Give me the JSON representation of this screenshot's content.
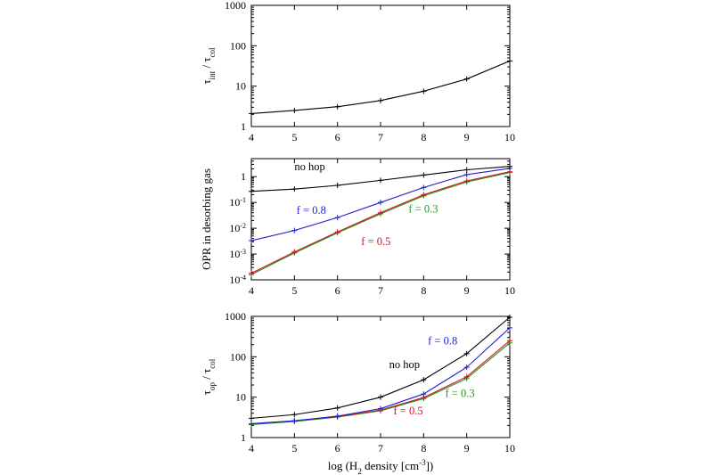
{
  "chart_data": [
    {
      "type": "line",
      "yscale": "log",
      "ylim": [
        1,
        1000
      ],
      "xlim": [
        4,
        10
      ],
      "x": [
        4,
        5,
        6,
        7,
        8,
        9,
        10
      ],
      "x_ticks": [
        "4",
        "5",
        "6",
        "7",
        "8",
        "9",
        "10"
      ],
      "y_ticks": [
        {
          "value": 1,
          "base": "1",
          "exp": ""
        },
        {
          "value": 10,
          "base": "10",
          "exp": ""
        },
        {
          "value": 100,
          "base": "100",
          "exp": ""
        },
        {
          "value": 1000,
          "base": "1000",
          "exp": ""
        }
      ],
      "ylabel": {
        "main": "τ",
        "sub1": "int",
        "sep": " / τ",
        "sub2": "col"
      },
      "series": [
        {
          "name": "",
          "color": "#000000",
          "values": [
            2.1,
            2.5,
            3.1,
            4.4,
            7.5,
            15,
            42
          ]
        }
      ],
      "annotations": []
    },
    {
      "type": "line",
      "yscale": "log",
      "ylim": [
        0.0001,
        5
      ],
      "xlim": [
        4,
        10
      ],
      "x": [
        4,
        5,
        6,
        7,
        8,
        9,
        10
      ],
      "x_ticks": [
        "4",
        "5",
        "6",
        "7",
        "8",
        "9",
        "10"
      ],
      "y_ticks": [
        {
          "value": 0.0001,
          "base": "10",
          "exp": "-4"
        },
        {
          "value": 0.001,
          "base": "10",
          "exp": "-3"
        },
        {
          "value": 0.01,
          "base": "10",
          "exp": "-2"
        },
        {
          "value": 0.1,
          "base": "10",
          "exp": "-1"
        },
        {
          "value": 1,
          "base": "1",
          "exp": ""
        }
      ],
      "ylabel": {
        "main": "OPR in desorbing gas",
        "sub1": "",
        "sep": "",
        "sub2": ""
      },
      "series": [
        {
          "name": "no hop",
          "color": "#000000",
          "values": [
            0.27,
            0.33,
            0.46,
            0.72,
            1.15,
            1.85,
            2.5
          ]
        },
        {
          "name": "f = 0.8",
          "color": "#1f1fd0",
          "values": [
            0.0033,
            0.0082,
            0.026,
            0.1,
            0.38,
            1.2,
            2.1
          ]
        },
        {
          "name": "f = 0.5",
          "color": "#d4141e",
          "values": [
            0.00018,
            0.0012,
            0.0072,
            0.04,
            0.2,
            0.68,
            1.55
          ]
        },
        {
          "name": "f = 0.3",
          "color": "#1a9a1a",
          "values": [
            0.00016,
            0.0011,
            0.0066,
            0.036,
            0.18,
            0.62,
            1.45
          ]
        }
      ],
      "annotations": [
        {
          "text": "no hop",
          "color": "#000000",
          "x": 5.0,
          "y": 1.8
        },
        {
          "text": "f = 0.8",
          "color": "#1f1fd0",
          "x": 5.05,
          "y": 0.036
        },
        {
          "text": "f = 0.5",
          "color": "#d4141e",
          "x": 6.55,
          "y": 0.0022
        },
        {
          "text": "f = 0.3",
          "color": "#1a9a1a",
          "x": 7.65,
          "y": 0.04
        }
      ]
    },
    {
      "type": "line",
      "yscale": "log",
      "ylim": [
        1,
        1000
      ],
      "xlim": [
        4,
        10
      ],
      "x": [
        4,
        5,
        6,
        7,
        8,
        9,
        10
      ],
      "x_ticks": [
        "4",
        "5",
        "6",
        "7",
        "8",
        "9",
        "10"
      ],
      "y_ticks": [
        {
          "value": 1,
          "base": "1",
          "exp": ""
        },
        {
          "value": 10,
          "base": "10",
          "exp": ""
        },
        {
          "value": 100,
          "base": "100",
          "exp": ""
        },
        {
          "value": 1000,
          "base": "1000",
          "exp": ""
        }
      ],
      "ylabel": {
        "main": "τ",
        "sub1": "op",
        "sep": " / τ",
        "sub2": "col"
      },
      "xlabel": {
        "pre": "log (H",
        "sub": "2",
        "mid": " density [cm",
        "sup": "-3",
        "post": "])"
      },
      "series": [
        {
          "name": "no hop",
          "color": "#000000",
          "values": [
            3.0,
            3.7,
            5.4,
            10,
            27,
            120,
            950
          ]
        },
        {
          "name": "f = 0.8",
          "color": "#1f1fd0",
          "values": [
            2.2,
            2.6,
            3.4,
            5.2,
            12,
            55,
            520
          ]
        },
        {
          "name": "f = 0.5",
          "color": "#d4141e",
          "values": [
            2.2,
            2.6,
            3.3,
            4.8,
            9.8,
            32,
            250
          ]
        },
        {
          "name": "f = 0.3",
          "color": "#1a9a1a",
          "values": [
            2.1,
            2.5,
            3.2,
            4.6,
            9.2,
            29,
            220
          ]
        }
      ],
      "annotations": [
        {
          "text": "f = 0.8",
          "color": "#1f1fd0",
          "x": 8.1,
          "y": 200
        },
        {
          "text": "no hop",
          "color": "#000000",
          "x": 7.2,
          "y": 52
        },
        {
          "text": "f = 0.3",
          "color": "#1a9a1a",
          "x": 8.5,
          "y": 10
        },
        {
          "text": "f = 0.5",
          "color": "#d4141e",
          "x": 7.3,
          "y": 3.7
        }
      ]
    }
  ]
}
